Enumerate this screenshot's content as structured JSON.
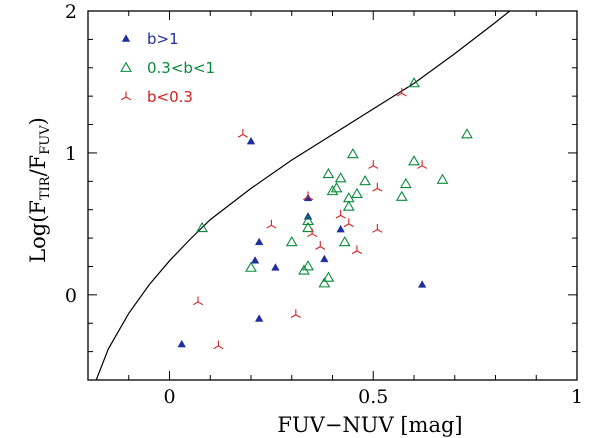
{
  "chart_data": {
    "type": "scatter",
    "xlabel": "FUV−NUV [mag]",
    "ylabel": {
      "prefix": "Log(F",
      "num_sub": "TIR",
      "mid": "/F",
      "den_sub": "FUV",
      "suffix": ")"
    },
    "xlim": [
      -0.2,
      1.0
    ],
    "ylim": [
      -0.6,
      2.0
    ],
    "xticks": [
      0,
      0.5,
      1
    ],
    "xtick_labels": [
      "0",
      "0.5",
      "1"
    ],
    "yticks": [
      0,
      1,
      2
    ],
    "ytick_labels": [
      "0",
      "1",
      "2"
    ],
    "legend_position": "top-left",
    "grid": false,
    "series": [
      {
        "name": "b>1",
        "marker": "filled-triangle",
        "color": "#1f2f9e",
        "points": [
          [
            0.03,
            -0.35
          ],
          [
            0.2,
            1.08
          ],
          [
            0.21,
            0.24
          ],
          [
            0.22,
            0.37
          ],
          [
            0.22,
            -0.17
          ],
          [
            0.26,
            0.19
          ],
          [
            0.34,
            0.55
          ],
          [
            0.34,
            0.68
          ],
          [
            0.38,
            0.25
          ],
          [
            0.42,
            0.46
          ],
          [
            0.62,
            0.07
          ]
        ]
      },
      {
        "name": "0.3<b<1",
        "marker": "open-triangle",
        "color": "#0a8a3a",
        "points": [
          [
            0.08,
            0.47
          ],
          [
            0.2,
            0.19
          ],
          [
            0.3,
            0.37
          ],
          [
            0.33,
            0.17
          ],
          [
            0.34,
            0.2
          ],
          [
            0.34,
            0.47
          ],
          [
            0.34,
            0.52
          ],
          [
            0.38,
            0.08
          ],
          [
            0.39,
            0.12
          ],
          [
            0.39,
            0.85
          ],
          [
            0.4,
            0.73
          ],
          [
            0.41,
            0.75
          ],
          [
            0.42,
            0.82
          ],
          [
            0.43,
            0.37
          ],
          [
            0.44,
            0.62
          ],
          [
            0.44,
            0.68
          ],
          [
            0.45,
            0.99
          ],
          [
            0.46,
            0.71
          ],
          [
            0.48,
            0.8
          ],
          [
            0.57,
            0.69
          ],
          [
            0.58,
            0.78
          ],
          [
            0.6,
            0.94
          ],
          [
            0.6,
            1.49
          ],
          [
            0.67,
            0.81
          ],
          [
            0.73,
            1.13
          ]
        ]
      },
      {
        "name": "b<0.3",
        "marker": "three-prong",
        "color": "#d42020",
        "points": [
          [
            0.07,
            -0.05
          ],
          [
            0.12,
            -0.36
          ],
          [
            0.18,
            1.13
          ],
          [
            0.25,
            0.49
          ],
          [
            0.31,
            -0.14
          ],
          [
            0.34,
            0.69
          ],
          [
            0.35,
            0.43
          ],
          [
            0.37,
            0.34
          ],
          [
            0.42,
            0.56
          ],
          [
            0.44,
            0.5
          ],
          [
            0.46,
            0.31
          ],
          [
            0.5,
            0.91
          ],
          [
            0.51,
            0.75
          ],
          [
            0.51,
            0.46
          ],
          [
            0.57,
            1.42
          ],
          [
            0.62,
            0.91
          ]
        ]
      }
    ],
    "curve": {
      "description_hidden": true,
      "points": [
        [
          -0.18,
          -0.6
        ],
        [
          -0.15,
          -0.38
        ],
        [
          -0.1,
          -0.13
        ],
        [
          -0.05,
          0.07
        ],
        [
          0.0,
          0.24
        ],
        [
          0.05,
          0.39
        ],
        [
          0.1,
          0.53
        ],
        [
          0.2,
          0.75
        ],
        [
          0.3,
          0.95
        ],
        [
          0.4,
          1.13
        ],
        [
          0.5,
          1.31
        ],
        [
          0.6,
          1.49
        ],
        [
          0.7,
          1.7
        ],
        [
          0.8,
          1.92
        ],
        [
          0.835,
          2.0
        ]
      ]
    }
  }
}
